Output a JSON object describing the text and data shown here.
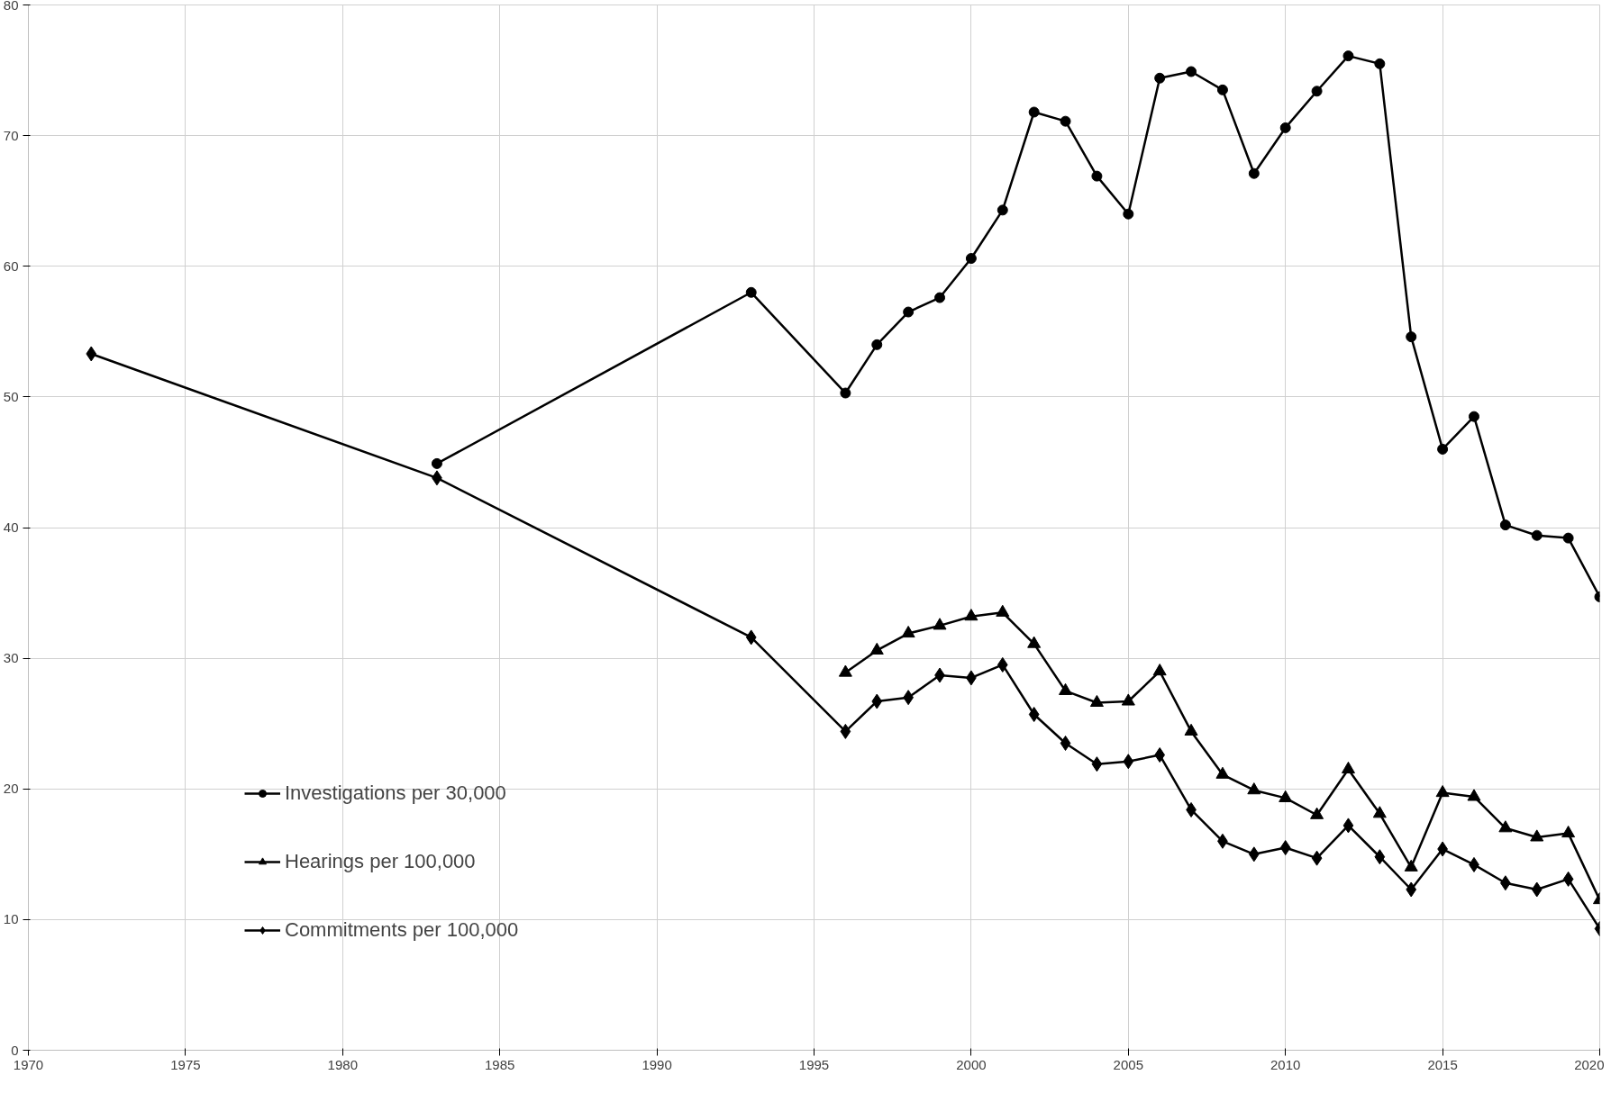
{
  "chart_data": {
    "type": "line",
    "xlim": [
      1970,
      2020
    ],
    "xticks": [
      1970,
      1975,
      1980,
      1985,
      1990,
      1995,
      2000,
      2005,
      2010,
      2015,
      2020
    ],
    "ylim": [
      0,
      80
    ],
    "yticks": [
      0,
      10,
      20,
      30,
      40,
      50,
      60,
      70,
      80
    ],
    "grid": true,
    "legend": "bottom left",
    "series": [
      {
        "name": "Investigations per 30,000",
        "color": "#000000",
        "marker": "circle",
        "x": [
          1983,
          1993,
          1996,
          1997,
          1998,
          1999,
          2000,
          2001,
          2002,
          2003,
          2004,
          2005,
          2006,
          2007,
          2008,
          2009,
          2010,
          2011,
          2012,
          2013,
          2014,
          2015,
          2016,
          2017,
          2018,
          2019,
          2020
        ],
        "values": [
          44.9,
          58,
          50.3,
          54,
          56.5,
          57.6,
          60.6,
          64.3,
          71.8,
          71.1,
          66.9,
          64,
          74.4,
          74.9,
          73.5,
          67.1,
          70.6,
          73.4,
          76.1,
          75.5,
          54.6,
          46,
          48.5,
          40.2,
          39.4,
          39.2,
          34.7
        ]
      },
      {
        "name": "Hearings per 100,000",
        "color": "#000000",
        "marker": "triangle",
        "x": [
          1996,
          1997,
          1998,
          1999,
          2000,
          2001,
          2002,
          2003,
          2004,
          2005,
          2006,
          2007,
          2008,
          2009,
          2010,
          2011,
          2012,
          2013,
          2014,
          2015,
          2016,
          2017,
          2018,
          2019,
          2020
        ],
        "values": [
          28.9,
          30.6,
          31.9,
          32.5,
          33.2,
          33.5,
          31.1,
          27.5,
          26.6,
          26.7,
          29,
          24.4,
          21.1,
          19.9,
          19.3,
          18,
          21.5,
          18.1,
          14,
          19.7,
          19.4,
          17,
          16.3,
          16.6,
          11.5
        ]
      },
      {
        "name": "Commitments per 100,000",
        "color": "#000000",
        "marker": "diamond",
        "x": [
          1972,
          1983,
          1993,
          1996,
          1997,
          1998,
          1999,
          2000,
          2001,
          2002,
          2003,
          2004,
          2005,
          2006,
          2007,
          2008,
          2009,
          2010,
          2011,
          2012,
          2013,
          2014,
          2015,
          2016,
          2017,
          2018,
          2019,
          2020
        ],
        "values": [
          53.3,
          43.8,
          31.6,
          24.4,
          26.7,
          27,
          28.7,
          28.5,
          29.5,
          25.7,
          23.5,
          21.9,
          22.1,
          22.6,
          18.4,
          16,
          15,
          15.5,
          14.7,
          17.2,
          14.8,
          12.3,
          15.4,
          14.2,
          12.8,
          12.3,
          13.1,
          9.3
        ]
      }
    ]
  }
}
